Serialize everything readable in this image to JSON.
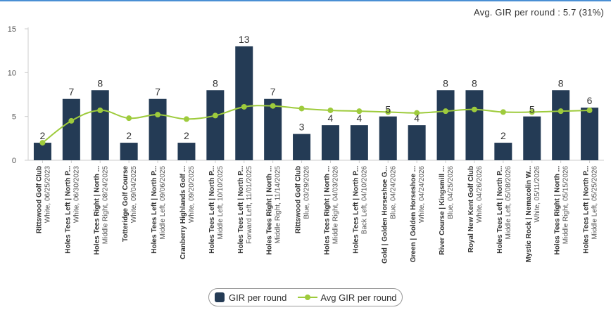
{
  "summary": {
    "text": "Avg. GIR per round : 5.7 (31%)"
  },
  "colors": {
    "bar": "#243b55",
    "avg_line": "#9ecb3c",
    "axis": "#cccccc",
    "grid": "#e6e6e6",
    "top_rule": "#4a8fd4"
  },
  "legend": {
    "bar_label": "GIR per round",
    "line_label": "Avg GIR per round"
  },
  "chart_data": {
    "type": "bar",
    "title": "",
    "xlabel": "",
    "ylabel": "",
    "ylim": [
      0,
      15
    ],
    "yticks": [
      0,
      5,
      10,
      15
    ],
    "grid": false,
    "legend_position": "bottom-center",
    "categories": [
      {
        "course": "Rittswood Golf Club",
        "detail": "White, 06/25/2023"
      },
      {
        "course": "Holes Tees Left | North P...",
        "detail": "White, 06/30/2023"
      },
      {
        "course": "Holes Tees Right | North ...",
        "detail": "Middle Right, 08/24/2025"
      },
      {
        "course": "Totteridge Golf Course",
        "detail": "White, 09/04/2025"
      },
      {
        "course": "Holes Tees Left | North P...",
        "detail": "Middle Left, 09/06/2025"
      },
      {
        "course": "Cranberry Highlands Golf ...",
        "detail": "White, 09/20/2025"
      },
      {
        "course": "Holes Tees Left | North P...",
        "detail": "Middle Left, 10/10/2025"
      },
      {
        "course": "Holes Tees Left | North P...",
        "detail": "Forward Left, 11/01/2025"
      },
      {
        "course": "Holes Tees Right | North ...",
        "detail": "Middle Right, 11/14/2025"
      },
      {
        "course": "Rittswood Golf Club",
        "detail": "Blue, 03/29/2026"
      },
      {
        "course": "Holes Tees Right | North ...",
        "detail": "Middle Right, 04/03/2026"
      },
      {
        "course": "Holes Tees Left | North P...",
        "detail": "Back Left, 04/10/2026"
      },
      {
        "course": "Gold | Golden Horseshoe G...",
        "detail": "Blue, 04/24/2026"
      },
      {
        "course": "Green | Golden Horseshoe ...",
        "detail": "White, 04/24/2026"
      },
      {
        "course": "River Course | Kingsmill ...",
        "detail": "Blue, 04/25/2026"
      },
      {
        "course": "Royal New Kent Golf Club",
        "detail": "White, 04/26/2026"
      },
      {
        "course": "Holes Tees Left | North P...",
        "detail": "Middle Left, 05/08/2026"
      },
      {
        "course": "Mystic Rock | Nemacolin W...",
        "detail": "White, 05/11/2026"
      },
      {
        "course": "Holes Tees Right | North ...",
        "detail": "Middle Right, 05/15/2026"
      },
      {
        "course": "Holes Tees Left | North P...",
        "detail": "Middle Left, 05/25/2026"
      }
    ],
    "series": [
      {
        "name": "GIR per round",
        "type": "bar",
        "values": [
          2,
          7,
          8,
          2,
          7,
          2,
          8,
          13,
          7,
          3,
          4,
          4,
          5,
          4,
          8,
          8,
          2,
          5,
          8,
          6
        ]
      },
      {
        "name": "Avg GIR per round",
        "type": "line",
        "values": [
          2.0,
          4.5,
          5.7,
          4.8,
          5.2,
          4.7,
          5.1,
          6.1,
          6.2,
          5.9,
          5.7,
          5.6,
          5.5,
          5.4,
          5.6,
          5.8,
          5.5,
          5.5,
          5.6,
          5.7
        ]
      }
    ]
  }
}
